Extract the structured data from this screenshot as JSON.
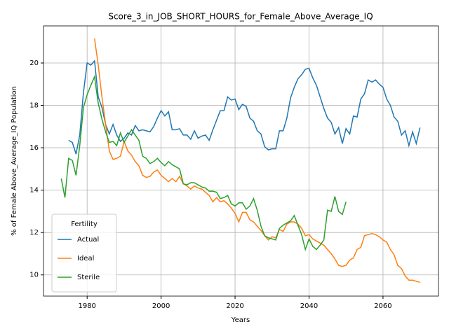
{
  "chart_data": {
    "type": "line",
    "title": "Score_3_in_JOB_SHORT_HOURS_for_Female_Above_Average_IQ",
    "x_label": "Years",
    "y_label": "% of Female Above_Average_IQ Population",
    "legend_title": "Fertility",
    "legend_position": "lower left",
    "grid": true,
    "xlim": [
      1968.2,
      2075.0
    ],
    "ylim": [
      9.0,
      21.75
    ],
    "xticks": [
      1980,
      2000,
      2020,
      2040,
      2060
    ],
    "yticks": [
      10,
      12,
      14,
      16,
      18,
      20
    ],
    "x": [
      1973,
      1974,
      1975,
      1976,
      1977,
      1978,
      1979,
      1980,
      1981,
      1982,
      1983,
      1984,
      1985,
      1986,
      1987,
      1988,
      1989,
      1990,
      1991,
      1992,
      1993,
      1994,
      1995,
      1996,
      1997,
      1998,
      1999,
      2000,
      2001,
      2002,
      2003,
      2004,
      2005,
      2006,
      2007,
      2008,
      2009,
      2010,
      2011,
      2012,
      2013,
      2014,
      2015,
      2016,
      2017,
      2018,
      2019,
      2020,
      2021,
      2022,
      2023,
      2024,
      2025,
      2026,
      2027,
      2028,
      2029,
      2030,
      2031,
      2032,
      2033,
      2034,
      2035,
      2036,
      2037,
      2038,
      2039,
      2040,
      2041,
      2042,
      2043,
      2044,
      2045,
      2046,
      2047,
      2048,
      2049,
      2050,
      2051,
      2052,
      2053,
      2054,
      2055,
      2056,
      2057,
      2058,
      2059,
      2060,
      2061,
      2062,
      2063,
      2064,
      2065,
      2066,
      2067,
      2068,
      2069,
      2070
    ],
    "series": [
      {
        "name": "Actual",
        "color": "#1f77b4",
        "values": [
          null,
          null,
          16.35,
          16.25,
          15.7,
          16.6,
          18.6,
          20.0,
          19.9,
          20.1,
          18.4,
          17.9,
          17.1,
          16.65,
          17.1,
          16.6,
          16.3,
          16.45,
          16.7,
          16.6,
          17.05,
          16.8,
          16.85,
          16.8,
          16.75,
          17.0,
          17.4,
          17.75,
          17.5,
          17.7,
          16.85,
          16.85,
          16.9,
          16.6,
          16.6,
          16.4,
          16.8,
          16.45,
          16.55,
          16.6,
          16.35,
          16.85,
          17.3,
          17.75,
          17.75,
          18.4,
          18.25,
          18.3,
          17.8,
          18.05,
          17.95,
          17.4,
          17.25,
          16.8,
          16.65,
          16.05,
          15.9,
          15.95,
          15.95,
          16.8,
          16.8,
          17.4,
          18.35,
          18.85,
          19.25,
          19.45,
          19.7,
          19.75,
          19.3,
          18.95,
          18.4,
          17.85,
          17.4,
          17.2,
          16.65,
          16.95,
          16.2,
          16.9,
          16.65,
          17.5,
          17.45,
          18.3,
          18.55,
          19.2,
          19.1,
          19.2,
          19.0,
          18.85,
          18.3,
          18.0,
          17.45,
          17.25,
          16.6,
          16.8,
          16.1,
          16.75,
          16.2,
          16.95
        ]
      },
      {
        "name": "Ideal",
        "color": "#ff7f0e",
        "values": [
          null,
          null,
          null,
          null,
          null,
          null,
          null,
          null,
          null,
          21.15,
          19.9,
          18.4,
          17.1,
          15.85,
          15.45,
          15.5,
          15.6,
          16.3,
          15.85,
          15.65,
          15.35,
          15.15,
          14.7,
          14.6,
          14.65,
          14.85,
          14.95,
          14.7,
          14.55,
          14.4,
          14.55,
          14.4,
          14.65,
          14.3,
          14.2,
          14.05,
          14.2,
          14.1,
          14.05,
          13.9,
          13.75,
          13.45,
          13.65,
          13.45,
          13.5,
          13.35,
          13.15,
          12.9,
          12.5,
          12.95,
          12.95,
          12.6,
          12.5,
          12.3,
          12.1,
          11.85,
          11.65,
          11.8,
          11.75,
          12.15,
          12.05,
          12.4,
          12.5,
          12.5,
          12.4,
          12.2,
          11.85,
          11.9,
          11.7,
          11.6,
          11.5,
          11.4,
          11.2,
          11.0,
          10.75,
          10.45,
          10.4,
          10.45,
          10.7,
          10.8,
          11.2,
          11.3,
          11.85,
          11.9,
          11.95,
          11.9,
          11.8,
          11.65,
          11.55,
          11.2,
          10.95,
          10.45,
          10.3,
          9.95,
          9.75,
          9.75,
          9.7,
          9.65
        ]
      },
      {
        "name": "Sterile",
        "color": "#2ca02c",
        "values": [
          14.55,
          13.65,
          15.5,
          15.4,
          14.7,
          16.1,
          17.9,
          18.5,
          18.95,
          19.35,
          18.1,
          17.35,
          16.75,
          16.25,
          16.3,
          16.1,
          16.7,
          16.25,
          16.55,
          16.85,
          16.6,
          16.35,
          15.6,
          15.5,
          15.25,
          15.35,
          15.5,
          15.3,
          15.15,
          15.35,
          15.2,
          15.1,
          15.0,
          14.3,
          14.25,
          14.35,
          14.35,
          14.25,
          14.15,
          14.1,
          13.95,
          13.95,
          13.9,
          13.6,
          13.65,
          13.75,
          13.35,
          13.25,
          13.4,
          13.4,
          13.1,
          13.25,
          13.6,
          13.05,
          12.3,
          11.85,
          11.75,
          11.7,
          11.65,
          12.2,
          12.35,
          12.45,
          12.55,
          12.8,
          12.35,
          11.9,
          11.2,
          11.7,
          11.35,
          11.2,
          11.4,
          11.65,
          13.05,
          13.0,
          13.7,
          13.0,
          12.85,
          13.45,
          null,
          null,
          null,
          null,
          null,
          null,
          null,
          null,
          null,
          null,
          null,
          null,
          null,
          null,
          null,
          null,
          null,
          null,
          null,
          null
        ]
      }
    ]
  }
}
